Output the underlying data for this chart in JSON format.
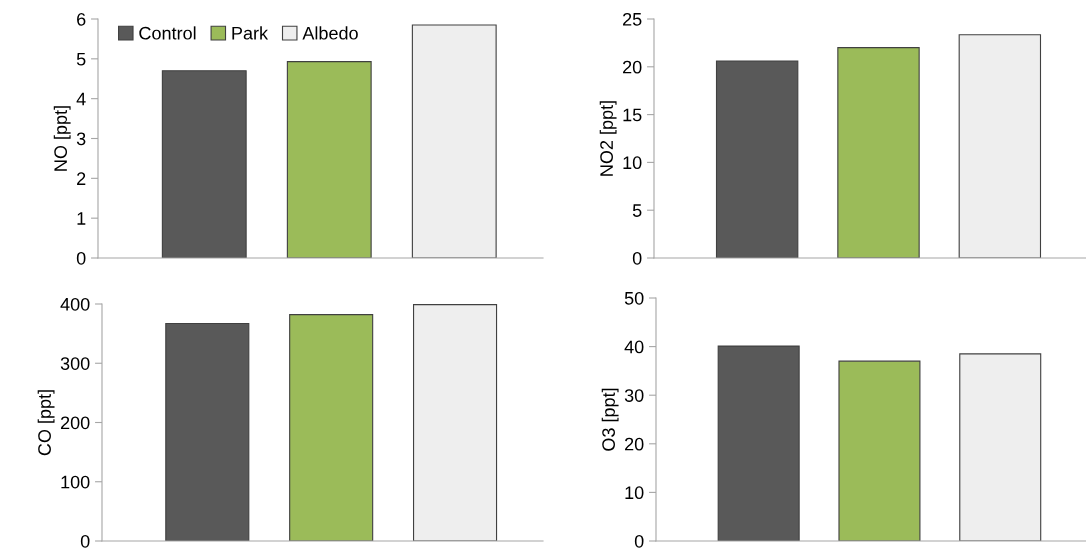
{
  "chart_data": [
    {
      "type": "bar",
      "categories": [
        null
      ],
      "ylabel": "NO [ppt]",
      "ylim": [
        0,
        6
      ],
      "yticks": [
        0,
        1,
        2,
        3,
        4,
        5,
        6
      ],
      "tick_labels": "y",
      "legend": "top left",
      "series": [
        {
          "name": "Control",
          "color": "#595959",
          "values": [
            4.7
          ]
        },
        {
          "name": "Park",
          "color": "#9bbb59",
          "values": [
            4.93
          ]
        },
        {
          "name": "Albedo",
          "color": "#eeeeee",
          "values": [
            5.85
          ]
        }
      ]
    },
    {
      "type": "bar",
      "categories": [
        null
      ],
      "ylabel": "NO2 [ppt]",
      "ylim": [
        0,
        25
      ],
      "yticks": [
        0,
        5,
        10,
        15,
        20,
        25
      ],
      "tick_labels": "y",
      "series": [
        {
          "color": "#595959",
          "values": [
            20.6
          ]
        },
        {
          "color": "#9bbb59",
          "values": [
            22.0
          ]
        },
        {
          "color": "#eeeeee",
          "values": [
            23.35
          ]
        }
      ]
    },
    {
      "type": "bar",
      "categories": [
        null
      ],
      "ylabel": "CO [ppt]",
      "ylim": [
        0,
        400
      ],
      "yticks": [
        0,
        100,
        200,
        300,
        400
      ],
      "tick_labels": "y",
      "series": [
        {
          "color": "#595959",
          "values": [
            367
          ]
        },
        {
          "color": "#9bbb59",
          "values": [
            382
          ]
        },
        {
          "color": "#eeeeee",
          "values": [
            399
          ]
        }
      ]
    },
    {
      "type": "bar",
      "categories": [
        null
      ],
      "ylabel": "O3 [ppt]",
      "ylim": [
        0,
        50
      ],
      "yticks": [
        0,
        10,
        20,
        30,
        40,
        50
      ],
      "tick_labels": "y",
      "series": [
        {
          "color": "#595959",
          "values": [
            40.1
          ]
        },
        {
          "color": "#9bbb59",
          "values": [
            37.0
          ]
        },
        {
          "color": "#eeeeee",
          "values": [
            38.5
          ]
        }
      ]
    }
  ]
}
